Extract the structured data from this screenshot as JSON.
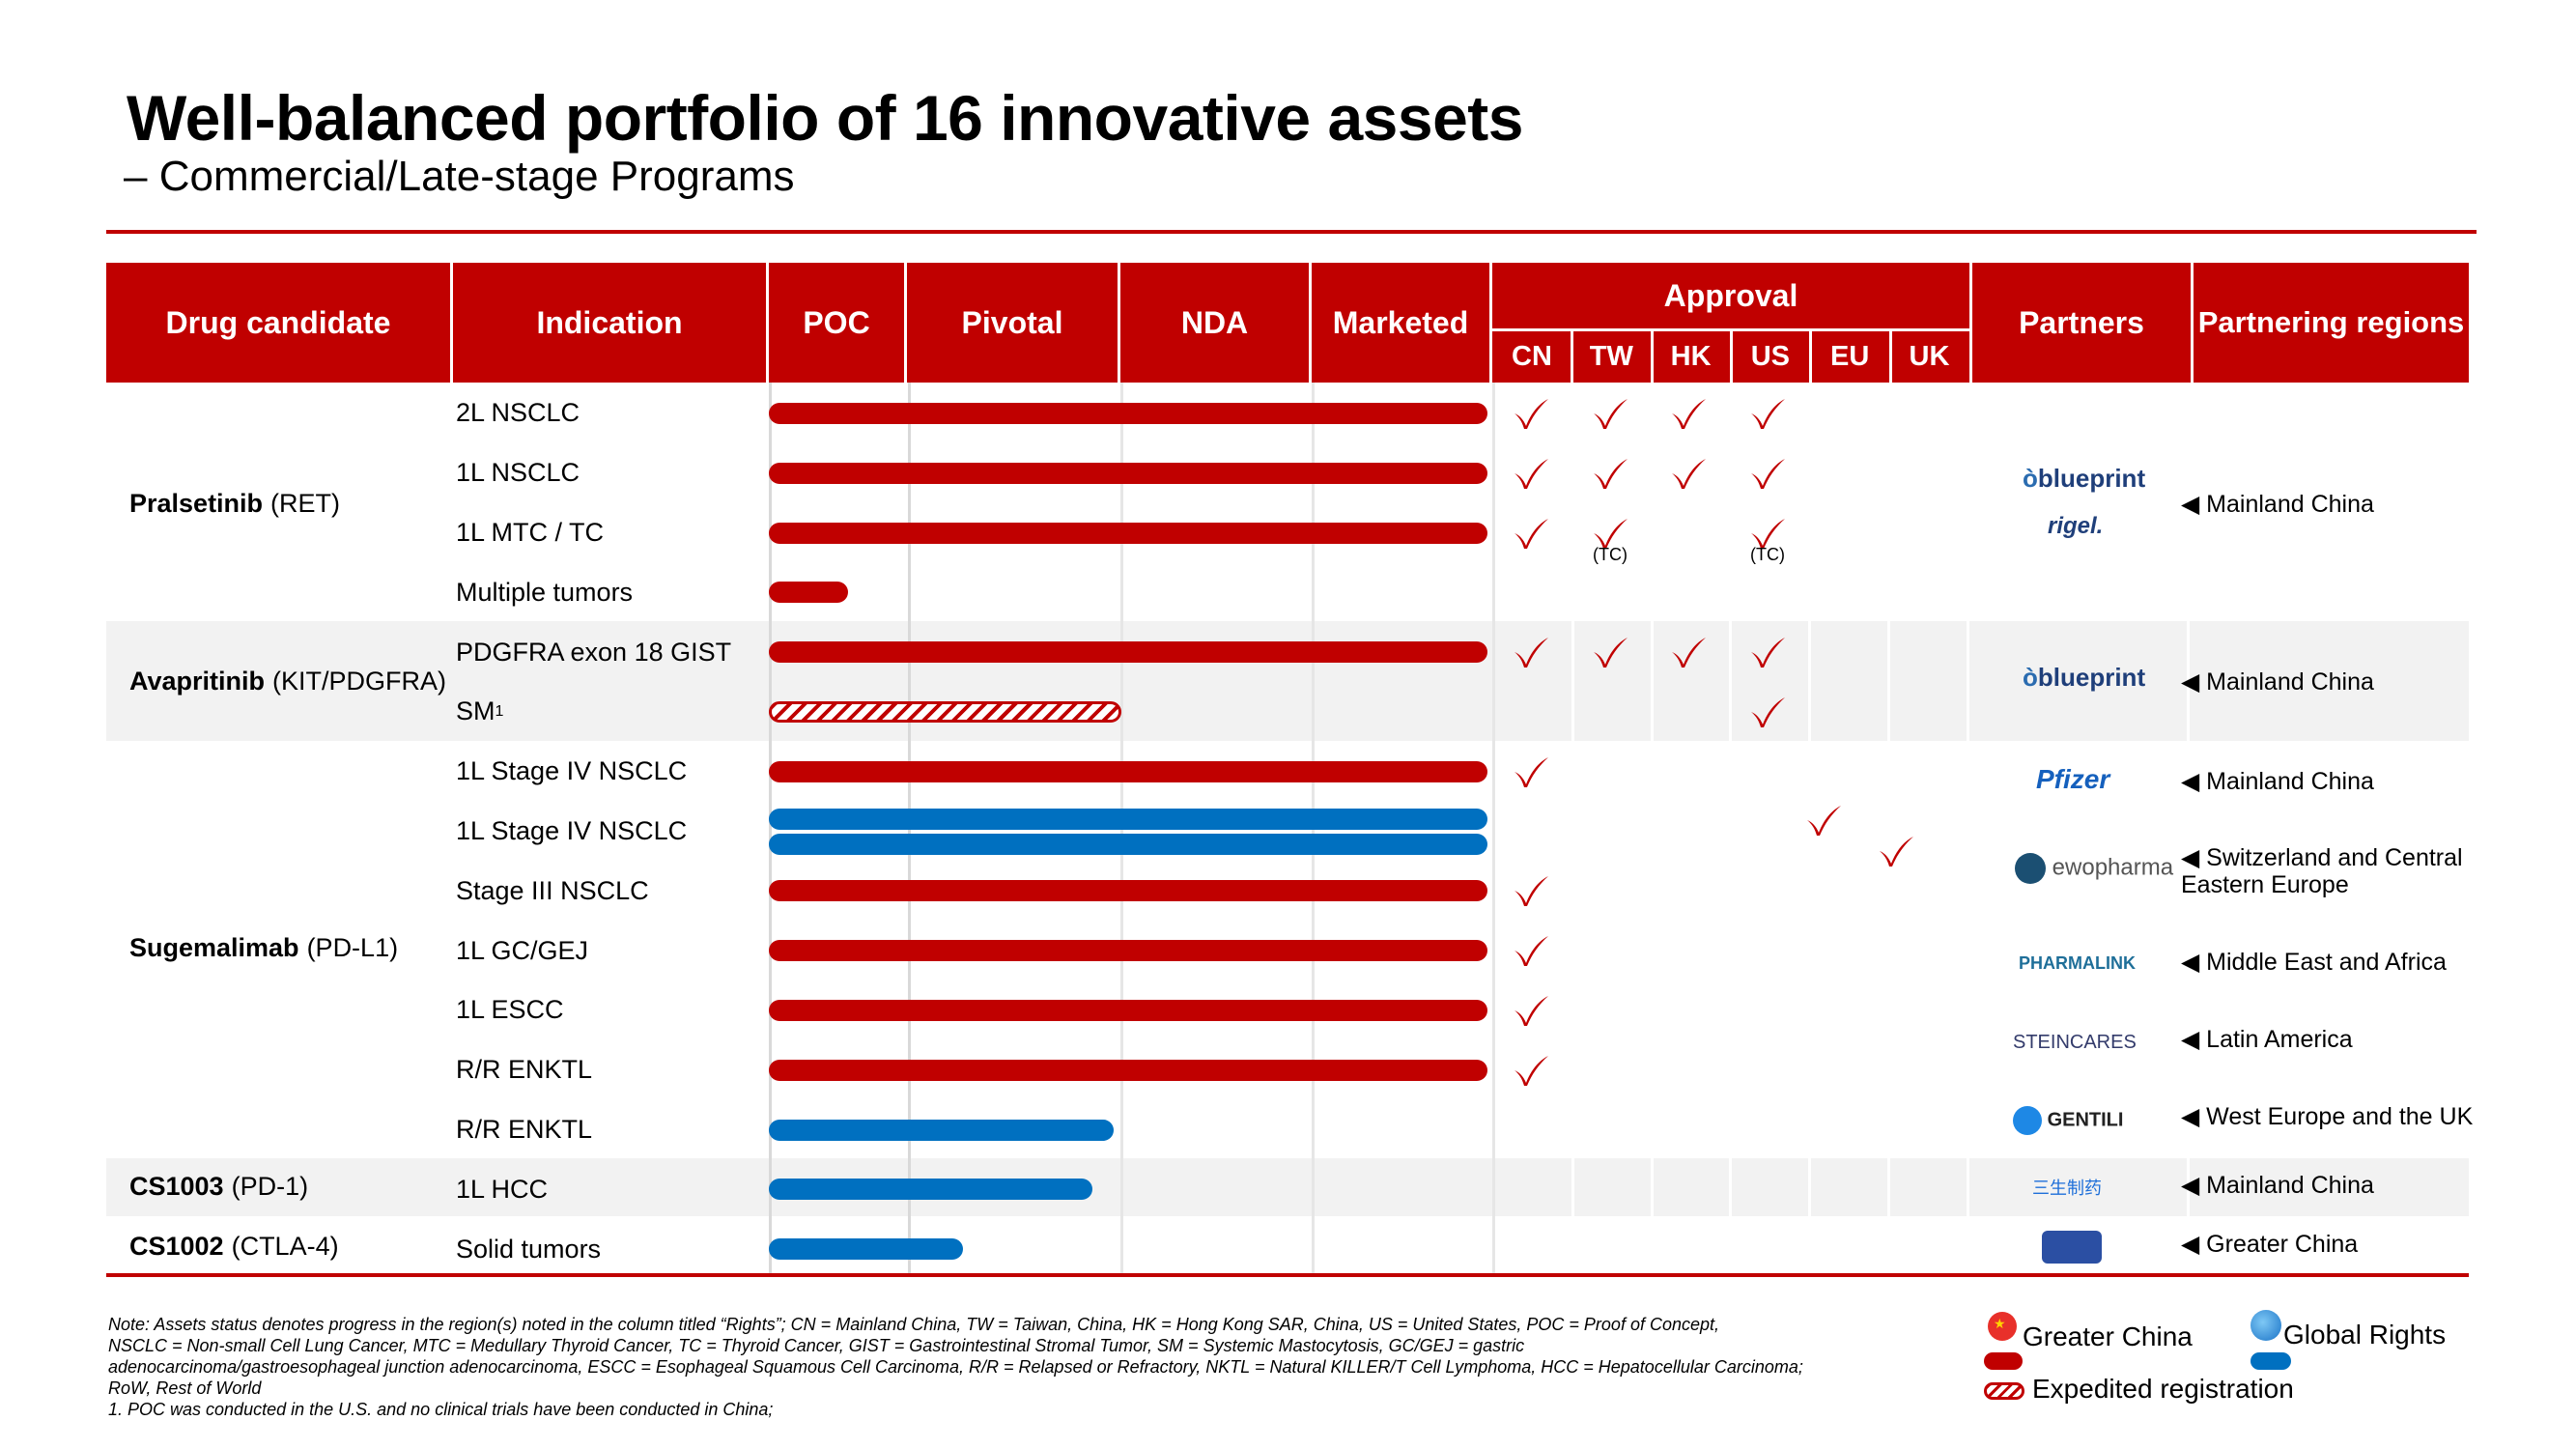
{
  "title": "Well-balanced portfolio of 16 innovative assets",
  "subtitle": "– Commercial/Late-stage Programs",
  "headers": {
    "drug": "Drug candidate",
    "indication": "Indication",
    "poc": "POC",
    "pivotal": "Pivotal",
    "nda": "NDA",
    "marketed": "Marketed",
    "approval": "Approval",
    "regions": [
      "CN",
      "TW",
      "HK",
      "US",
      "EU",
      "UK"
    ],
    "partners": "Partners",
    "partnering_regions": "Partnering regions"
  },
  "drugs": [
    {
      "name": "Pralsetinib",
      "target": "(RET)"
    },
    {
      "name": "Avapritinib",
      "target": "(KIT/PDGFRA)"
    },
    {
      "name": "Sugemalimab",
      "target": "(PD-L1)"
    },
    {
      "name": "CS1003",
      "target": "(PD-1)"
    },
    {
      "name": "CS1002",
      "target": "(CTLA-4)"
    }
  ],
  "rows": [
    {
      "indication": "2L NSCLC",
      "progress": 1.0,
      "type": "greater-china",
      "approvals": [
        "CN",
        "TW",
        "HK",
        "US"
      ]
    },
    {
      "indication": "1L NSCLC",
      "progress": 1.0,
      "type": "greater-china",
      "approvals": [
        "CN",
        "TW",
        "HK",
        "US"
      ]
    },
    {
      "indication": "1L MTC / TC",
      "progress": 1.0,
      "type": "greater-china",
      "approvals": [
        "CN",
        "TW",
        "US"
      ]
    },
    {
      "indication": "Multiple tumors",
      "progress": 0.11,
      "type": "greater-china",
      "approvals": []
    },
    {
      "indication": "PDGFRA exon 18 GIST",
      "progress": 1.0,
      "type": "greater-china",
      "approvals": [
        "CN",
        "TW",
        "HK",
        "US"
      ]
    },
    {
      "indication": "SM",
      "superscript": "1",
      "progress": 0.49,
      "type": "expedited",
      "approvals": [
        "US"
      ]
    },
    {
      "indication": "1L Stage IV NSCLC",
      "progress": 1.0,
      "type": "greater-china",
      "approvals": [
        "CN"
      ]
    },
    {
      "indication": "1L Stage IV NSCLC",
      "progress": 1.0,
      "type": "global",
      "approvals": [
        "EU",
        "UK"
      ]
    },
    {
      "indication": "Stage III NSCLC",
      "progress": 1.0,
      "type": "greater-china",
      "approvals": [
        "CN"
      ]
    },
    {
      "indication": "1L GC/GEJ",
      "progress": 1.0,
      "type": "greater-china",
      "approvals": [
        "CN"
      ]
    },
    {
      "indication": "1L ESCC",
      "progress": 1.0,
      "type": "greater-china",
      "approvals": [
        "CN"
      ]
    },
    {
      "indication": "R/R ENKTL",
      "progress": 1.0,
      "type": "greater-china",
      "approvals": [
        "CN"
      ]
    },
    {
      "indication": "R/R ENKTL",
      "progress": 0.48,
      "type": "global",
      "approvals": []
    },
    {
      "indication": "1L HCC",
      "progress": 0.45,
      "type": "global",
      "approvals": []
    },
    {
      "indication": "Solid tumors",
      "progress": 0.27,
      "type": "global",
      "approvals": []
    }
  ],
  "tc_note": "(TC)",
  "partners": [
    {
      "logo": "blueprint",
      "region": "◀ Mainland China"
    },
    {
      "logo": "rigel.",
      "region": ""
    },
    {
      "logo": "blueprint",
      "region": "◀ Mainland China"
    },
    {
      "logo": "Pfizer",
      "region": "◀ Mainland China"
    },
    {
      "logo": "ewopharma",
      "region": "◀ Switzerland and Central Eastern Europe"
    },
    {
      "logo": "PHARMALINK",
      "region": "◀ Middle East and Africa"
    },
    {
      "logo": "STEINCARES",
      "region": "◀ Latin America"
    },
    {
      "logo": "GENTILI",
      "region": "◀ West Europe and the UK"
    },
    {
      "logo": "三生制药",
      "region": "◀ Mainland China"
    },
    {
      "logo": "",
      "region": "◀ Greater China"
    }
  ],
  "notes": [
    "Note: Assets status denotes progress in the region(s) noted in the column titled “Rights”; CN = Mainland China, TW = Taiwan, China, HK = Hong Kong SAR, China, US = United States, POC = Proof of Concept,",
    "NSCLC = Non-small Cell Lung Cancer, MTC = Medullary Thyroid Cancer, TC = Thyroid Cancer, GIST = Gastrointestinal Stromal Tumor, SM = Systemic Mastocytosis, GC/GEJ = gastric",
    "adenocarcinoma/gastroesophageal junction adenocarcinoma, ESCC = Esophageal Squamous Cell Carcinoma, R/R = Relapsed or Refractory, NKTL = Natural KILLER/T Cell Lymphoma, HCC = Hepatocellular Carcinoma;",
    "RoW, Rest of World",
    "1. POC was conducted in the U.S. and no clinical trials have been conducted in China;"
  ],
  "legend": {
    "greater_china": "Greater China",
    "global": "Global Rights",
    "expedited": "Expedited registration"
  },
  "colors": {
    "red": "#c00000",
    "blue": "#0070c0",
    "band": "#f2f2f2"
  }
}
